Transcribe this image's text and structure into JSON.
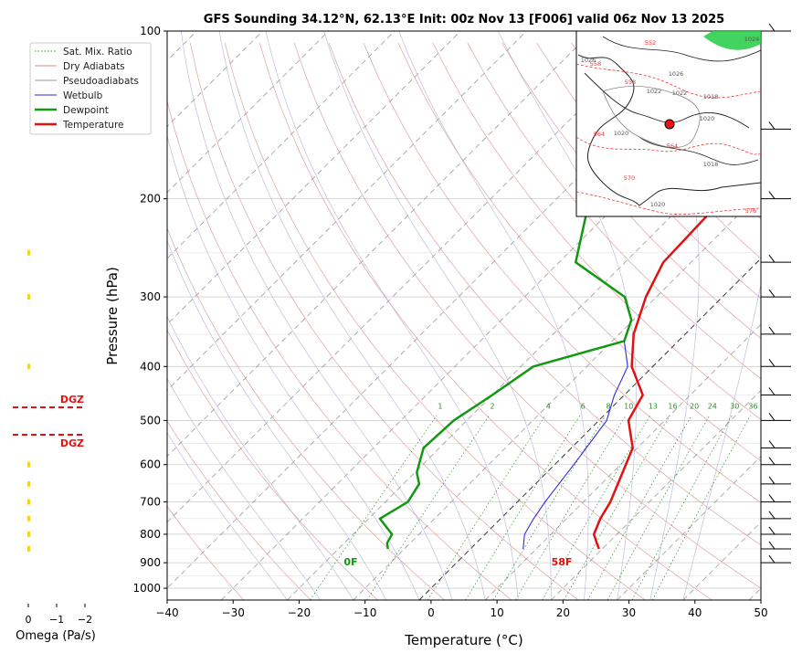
{
  "chart_data": {
    "type": "line",
    "title": "GFS Sounding 34.12°N, 62.13°E Init: 00z Nov 13 [F006] valid 06z Nov 13 2025",
    "xlabel": "Temperature (°C)",
    "ylabel": "Pressure (hPa)",
    "xlim": [
      -40,
      50
    ],
    "ylim": [
      1050,
      100
    ],
    "y_scale": "log",
    "skew": "skew-T",
    "xticks": [
      "−40",
      "−30",
      "−20",
      "−10",
      "0",
      "10",
      "20",
      "30",
      "40",
      "50"
    ],
    "yticks": [
      "100",
      "200",
      "300",
      "400",
      "500",
      "600",
      "700",
      "800",
      "900",
      "1000"
    ],
    "legend": {
      "placement": "top-left",
      "entries": [
        {
          "label": "Sat. Mix. Ratio",
          "color": "#2e8b2e",
          "style": "dotted"
        },
        {
          "label": "Dry Adiabats",
          "color": "#d98a8a",
          "style": "solid"
        },
        {
          "label": "Pseudoadiabats",
          "color": "#9a9a9a",
          "style": "solid"
        },
        {
          "label": "Wetbulb",
          "color": "#2a2ae0",
          "style": "solid"
        },
        {
          "label": "Dewpoint",
          "color": "#119911",
          "style": "bold"
        },
        {
          "label": "Temperature",
          "color": "#e11111",
          "style": "bold"
        }
      ]
    },
    "series": [
      {
        "name": "Temperature",
        "color": "#e11111",
        "points": [
          [
            19.5,
            850
          ],
          [
            18.3,
            830
          ],
          [
            16.5,
            800
          ],
          [
            15.1,
            750
          ],
          [
            14.1,
            700
          ],
          [
            11.5,
            620
          ],
          [
            9.3,
            560
          ],
          [
            4.5,
            500
          ],
          [
            2.8,
            450
          ],
          [
            -3.2,
            400
          ],
          [
            -7.8,
            350
          ],
          [
            -11.6,
            300
          ],
          [
            -14.2,
            260
          ],
          [
            -14.8,
            200
          ],
          [
            -13.3,
            170
          ],
          [
            -13.5,
            150
          ],
          [
            -15.7,
            100
          ]
        ]
      },
      {
        "name": "Dewpoint",
        "color": "#119911",
        "points": [
          [
            -12.5,
            850
          ],
          [
            -13.5,
            830
          ],
          [
            -14.1,
            800
          ],
          [
            -18.3,
            750
          ],
          [
            -16.6,
            700
          ],
          [
            -17.6,
            650
          ],
          [
            -19.7,
            620
          ],
          [
            -22.4,
            560
          ],
          [
            -22.0,
            500
          ],
          [
            -20.0,
            450
          ],
          [
            -18.1,
            400
          ],
          [
            -8.2,
            360
          ],
          [
            -10.3,
            330
          ],
          [
            -14.8,
            300
          ],
          [
            -27.5,
            260
          ],
          [
            -35.0,
            200
          ],
          [
            -40.5,
            150
          ],
          [
            -50.0,
            100
          ]
        ]
      },
      {
        "name": "Wetbulb",
        "color": "#2a2ae0",
        "points": [
          [
            8.0,
            850
          ],
          [
            6.0,
            800
          ],
          [
            5.0,
            750
          ],
          [
            4.2,
            700
          ],
          [
            2.9,
            600
          ],
          [
            1.2,
            500
          ],
          [
            -1.5,
            450
          ],
          [
            -3.8,
            400
          ],
          [
            -8.2,
            360
          ]
        ]
      }
    ],
    "surface_labels": {
      "dewpoint": "0F",
      "temperature": "58F"
    },
    "mixing_ratio_labels": [
      "1",
      "2",
      "4",
      "6",
      "8",
      "10",
      "13",
      "16",
      "20",
      "24",
      "30",
      "36"
    ],
    "omega": {
      "xlabel": "Omega (Pa/s)",
      "xticks": [
        "0",
        "−1",
        "−2"
      ],
      "dgz_label": "DGZ",
      "dgz_bounds_hpa": [
        470,
        525
      ],
      "values": [
        {
          "p": 850,
          "omega": -0.05
        },
        {
          "p": 800,
          "omega": -0.05
        },
        {
          "p": 750,
          "omega": -0.05
        },
        {
          "p": 700,
          "omega": -0.05
        },
        {
          "p": 650,
          "omega": -0.05
        },
        {
          "p": 600,
          "omega": 0.0
        },
        {
          "p": 400,
          "omega": -0.05
        },
        {
          "p": 300,
          "omega": -0.05
        },
        {
          "p": 250,
          "omega": 0.0
        }
      ]
    },
    "inset_map": {
      "highlighted_location": "34.12°N, 62.13°E",
      "contour_labels": [
        "1026",
        "1026",
        "1022",
        "1022",
        "1018",
        "1020",
        "1020",
        "1018",
        "564",
        "564",
        "570",
        "576",
        "558",
        "552",
        "558",
        "1020",
        "1024"
      ]
    },
    "wind_barbs_pressures_hpa": [
      100,
      150,
      200,
      260,
      300,
      350,
      400,
      450,
      500,
      560,
      600,
      650,
      700,
      750,
      800,
      850,
      900
    ]
  }
}
